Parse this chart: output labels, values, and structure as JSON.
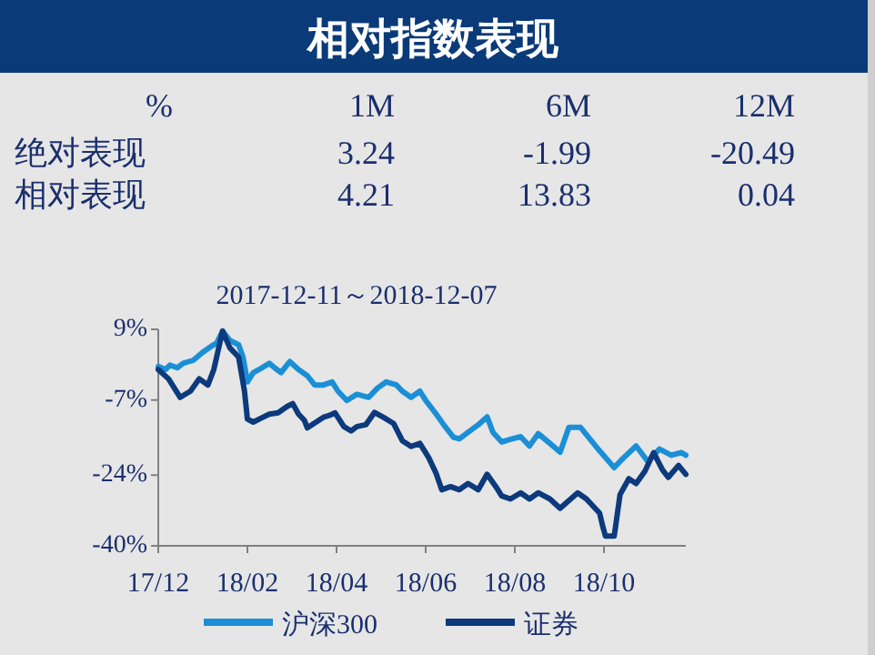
{
  "chart_data": [
    {
      "type": "other",
      "title": "相对指数表现",
      "ylabel": "%",
      "categories": [
        "1M",
        "6M",
        "12M"
      ],
      "data_labels": true,
      "series": [
        {
          "name": "绝对表现",
          "color": "#1a2f6e",
          "values": [
            3.24,
            -1.99,
            -20.49
          ]
        },
        {
          "name": "相对表现",
          "color": "#1a2f6e",
          "values": [
            4.21,
            13.83,
            0.04
          ]
        }
      ]
    },
    {
      "type": "line",
      "title": "2017-12-11～2018-12-07",
      "xlim": [
        "2017-12-11",
        "2018-12-07"
      ],
      "ylim": [
        -40,
        9
      ],
      "xticks": [
        {
          "value": "2017-12-11",
          "label": "17/12"
        },
        {
          "value": "2018-02-10",
          "label": "18/02"
        },
        {
          "value": "2018-04-12",
          "label": "18/04"
        },
        {
          "value": "2018-06-12",
          "label": "18/06"
        },
        {
          "value": "2018-08-12",
          "label": "18/08"
        },
        {
          "value": "2018-10-12",
          "label": "18/10"
        }
      ],
      "yticks": [
        {
          "value": 9,
          "label": "9%"
        },
        {
          "value": -7,
          "label": "-7%"
        },
        {
          "value": -24,
          "label": "-24%"
        },
        {
          "value": -40,
          "label": "-40%"
        }
      ],
      "legend": "bottom",
      "grid": false,
      "marker": "none",
      "line_style": "solid",
      "series": [
        {
          "name": "沪深300",
          "color": "#1b8fd6",
          "x": [
            "2017-12-11",
            "2017-12-16",
            "2017-12-19",
            "2017-12-24",
            "2017-12-28",
            "2018-01-04",
            "2018-01-10",
            "2018-01-16",
            "2018-01-20",
            "2018-01-24",
            "2018-01-29",
            "2018-02-04",
            "2018-02-07",
            "2018-02-10",
            "2018-02-14",
            "2018-02-20",
            "2018-02-25",
            "2018-03-01",
            "2018-03-05",
            "2018-03-11",
            "2018-03-17",
            "2018-03-23",
            "2018-03-28",
            "2018-04-03",
            "2018-04-09",
            "2018-04-13",
            "2018-04-19",
            "2018-04-26",
            "2018-05-04",
            "2018-05-10",
            "2018-05-16",
            "2018-05-23",
            "2018-05-27",
            "2018-06-02",
            "2018-06-08",
            "2018-06-12",
            "2018-06-19",
            "2018-06-25",
            "2018-07-01",
            "2018-07-05",
            "2018-07-11",
            "2018-07-18",
            "2018-07-24",
            "2018-07-28",
            "2018-08-03",
            "2018-08-09",
            "2018-08-16",
            "2018-08-22",
            "2018-08-28",
            "2018-09-05",
            "2018-09-12",
            "2018-09-18",
            "2018-09-26",
            "2018-10-09",
            "2018-10-19",
            "2018-10-25",
            "2018-11-03",
            "2018-11-11",
            "2018-11-19",
            "2018-11-27",
            "2018-12-04",
            "2018-12-07"
          ],
          "values": [
            0.6,
            -0.1,
            0.9,
            0.3,
            1.3,
            2.0,
            3.7,
            5.1,
            5.9,
            8.6,
            6.5,
            5.5,
            2.7,
            -2.9,
            -0.8,
            0.3,
            1.3,
            0.2,
            -0.8,
            1.7,
            -0.1,
            -1.5,
            -3.6,
            -3.6,
            -2.9,
            -5.0,
            -7.1,
            -5.7,
            -6.4,
            -4.3,
            -2.9,
            -3.6,
            -5.0,
            -6.4,
            -5.0,
            -7.1,
            -10.1,
            -12.9,
            -15.4,
            -15.8,
            -14.3,
            -12.6,
            -10.8,
            -14.3,
            -16.5,
            -15.9,
            -15.3,
            -17.4,
            -14.6,
            -16.8,
            -18.8,
            -13.2,
            -13.2,
            -18.5,
            -22.3,
            -20.2,
            -17.4,
            -20.9,
            -18.1,
            -19.5,
            -18.9,
            -19.5
          ]
        },
        {
          "name": "证券",
          "color": "#0c3a7c",
          "x": [
            "2017-12-11",
            "2017-12-18",
            "2017-12-26",
            "2018-01-02",
            "2018-01-08",
            "2018-01-14",
            "2018-01-18",
            "2018-01-24",
            "2018-01-29",
            "2018-02-04",
            "2018-02-08",
            "2018-02-10",
            "2018-02-14",
            "2018-02-20",
            "2018-02-25",
            "2018-03-03",
            "2018-03-09",
            "2018-03-13",
            "2018-03-17",
            "2018-03-21",
            "2018-03-23",
            "2018-03-28",
            "2018-04-03",
            "2018-04-07",
            "2018-04-11",
            "2018-04-17",
            "2018-04-22",
            "2018-04-26",
            "2018-05-02",
            "2018-05-08",
            "2018-05-14",
            "2018-05-21",
            "2018-05-27",
            "2018-06-02",
            "2018-06-08",
            "2018-06-14",
            "2018-06-19",
            "2018-06-23",
            "2018-06-29",
            "2018-07-05",
            "2018-07-11",
            "2018-07-18",
            "2018-07-24",
            "2018-07-30",
            "2018-08-03",
            "2018-08-09",
            "2018-08-16",
            "2018-08-22",
            "2018-08-28",
            "2018-09-05",
            "2018-09-12",
            "2018-09-24",
            "2018-09-30",
            "2018-10-09",
            "2018-10-11",
            "2018-10-13",
            "2018-10-19",
            "2018-10-23",
            "2018-10-29",
            "2018-11-03",
            "2018-11-09",
            "2018-11-15",
            "2018-11-21",
            "2018-11-25",
            "2018-12-02",
            "2018-12-07"
          ],
          "values": [
            -0.1,
            -2.2,
            -6.4,
            -5.0,
            -2.2,
            -3.6,
            -0.1,
            8.6,
            4.8,
            2.7,
            -5.0,
            -11.3,
            -12.0,
            -11.0,
            -10.2,
            -9.9,
            -8.5,
            -7.8,
            -10.2,
            -11.6,
            -13.3,
            -12.2,
            -10.9,
            -10.5,
            -9.9,
            -13.0,
            -14.0,
            -13.0,
            -12.6,
            -9.8,
            -10.9,
            -12.3,
            -16.2,
            -17.5,
            -16.8,
            -20.0,
            -23.5,
            -27.3,
            -26.6,
            -27.3,
            -25.9,
            -27.3,
            -23.8,
            -26.6,
            -28.7,
            -29.4,
            -28.0,
            -29.4,
            -28.0,
            -29.4,
            -31.5,
            -28.0,
            -29.4,
            -32.6,
            -35.4,
            -37.8,
            -37.8,
            -28.4,
            -24.8,
            -25.9,
            -23.1,
            -18.9,
            -22.8,
            -24.5,
            -21.8,
            -23.8
          ]
        }
      ]
    }
  ]
}
